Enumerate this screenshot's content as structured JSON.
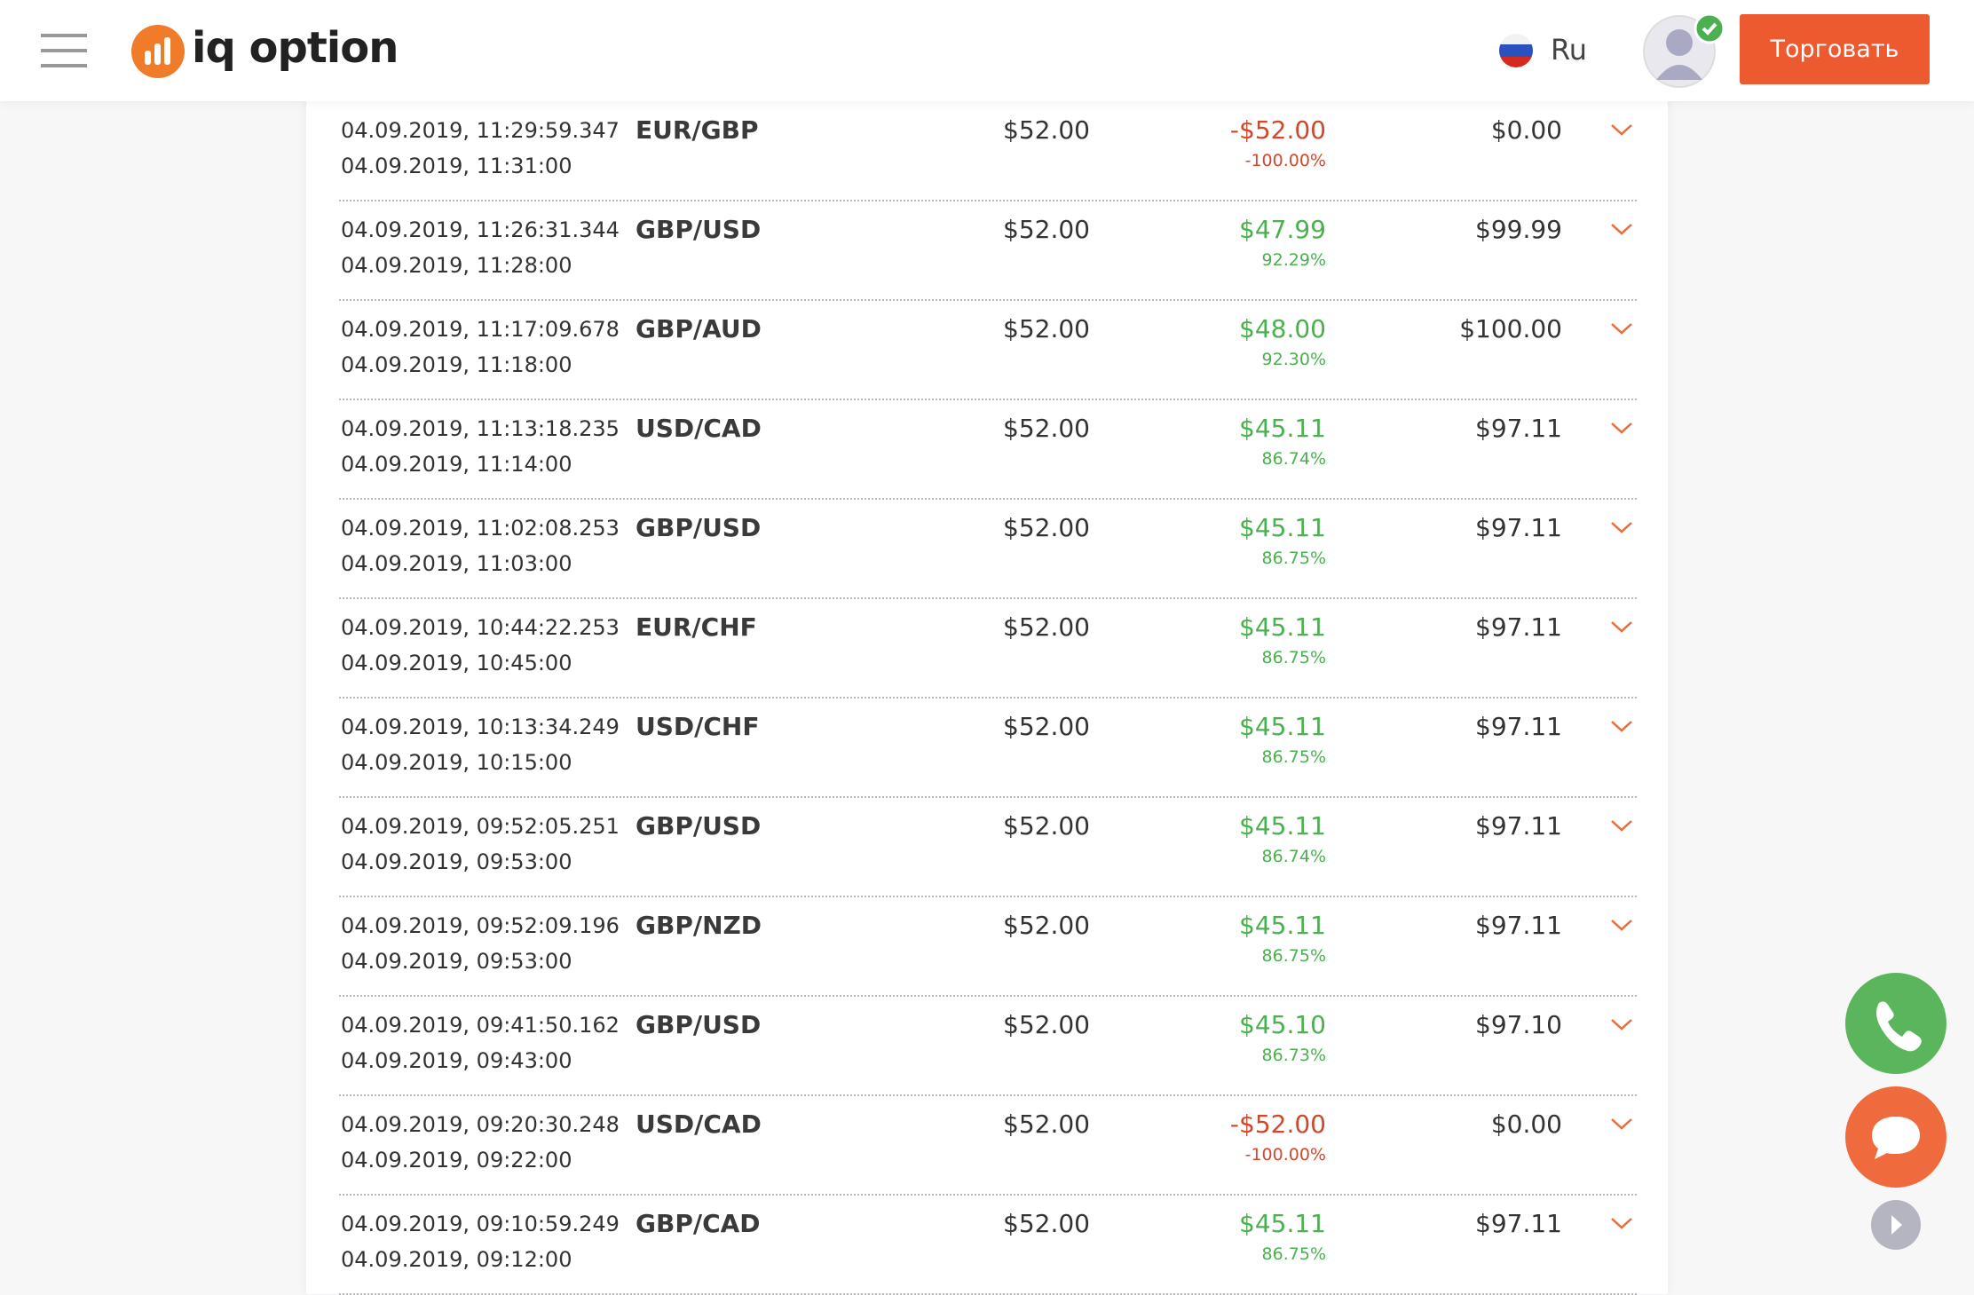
{
  "header": {
    "brand": "iq option",
    "language": "Ru",
    "trade_button": "Торговать"
  },
  "trades": [
    {
      "open": "04.09.2019, 11:29:59.347",
      "close": "04.09.2019, 11:31:00",
      "pair": "EUR/GBP",
      "amount": "$52.00",
      "profit": "-$52.00",
      "percent": "-100.00%",
      "payout": "$0.00"
    },
    {
      "open": "04.09.2019, 11:26:31.344",
      "close": "04.09.2019, 11:28:00",
      "pair": "GBP/USD",
      "amount": "$52.00",
      "profit": "$47.99",
      "percent": "92.29%",
      "payout": "$99.99"
    },
    {
      "open": "04.09.2019, 11:17:09.678",
      "close": "04.09.2019, 11:18:00",
      "pair": "GBP/AUD",
      "amount": "$52.00",
      "profit": "$48.00",
      "percent": "92.30%",
      "payout": "$100.00"
    },
    {
      "open": "04.09.2019, 11:13:18.235",
      "close": "04.09.2019, 11:14:00",
      "pair": "USD/CAD",
      "amount": "$52.00",
      "profit": "$45.11",
      "percent": "86.74%",
      "payout": "$97.11"
    },
    {
      "open": "04.09.2019, 11:02:08.253",
      "close": "04.09.2019, 11:03:00",
      "pair": "GBP/USD",
      "amount": "$52.00",
      "profit": "$45.11",
      "percent": "86.75%",
      "payout": "$97.11"
    },
    {
      "open": "04.09.2019, 10:44:22.253",
      "close": "04.09.2019, 10:45:00",
      "pair": "EUR/CHF",
      "amount": "$52.00",
      "profit": "$45.11",
      "percent": "86.75%",
      "payout": "$97.11"
    },
    {
      "open": "04.09.2019, 10:13:34.249",
      "close": "04.09.2019, 10:15:00",
      "pair": "USD/CHF",
      "amount": "$52.00",
      "profit": "$45.11",
      "percent": "86.75%",
      "payout": "$97.11"
    },
    {
      "open": "04.09.2019, 09:52:05.251",
      "close": "04.09.2019, 09:53:00",
      "pair": "GBP/USD",
      "amount": "$52.00",
      "profit": "$45.11",
      "percent": "86.74%",
      "payout": "$97.11"
    },
    {
      "open": "04.09.2019, 09:52:09.196",
      "close": "04.09.2019, 09:53:00",
      "pair": "GBP/NZD",
      "amount": "$52.00",
      "profit": "$45.11",
      "percent": "86.75%",
      "payout": "$97.11"
    },
    {
      "open": "04.09.2019, 09:41:50.162",
      "close": "04.09.2019, 09:43:00",
      "pair": "GBP/USD",
      "amount": "$52.00",
      "profit": "$45.10",
      "percent": "86.73%",
      "payout": "$97.10"
    },
    {
      "open": "04.09.2019, 09:20:30.248",
      "close": "04.09.2019, 09:22:00",
      "pair": "USD/CAD",
      "amount": "$52.00",
      "profit": "-$52.00",
      "percent": "-100.00%",
      "payout": "$0.00"
    },
    {
      "open": "04.09.2019, 09:10:59.249",
      "close": "04.09.2019, 09:12:00",
      "pair": "GBP/CAD",
      "amount": "$52.00",
      "profit": "$45.11",
      "percent": "86.75%",
      "payout": "$97.11"
    }
  ]
}
